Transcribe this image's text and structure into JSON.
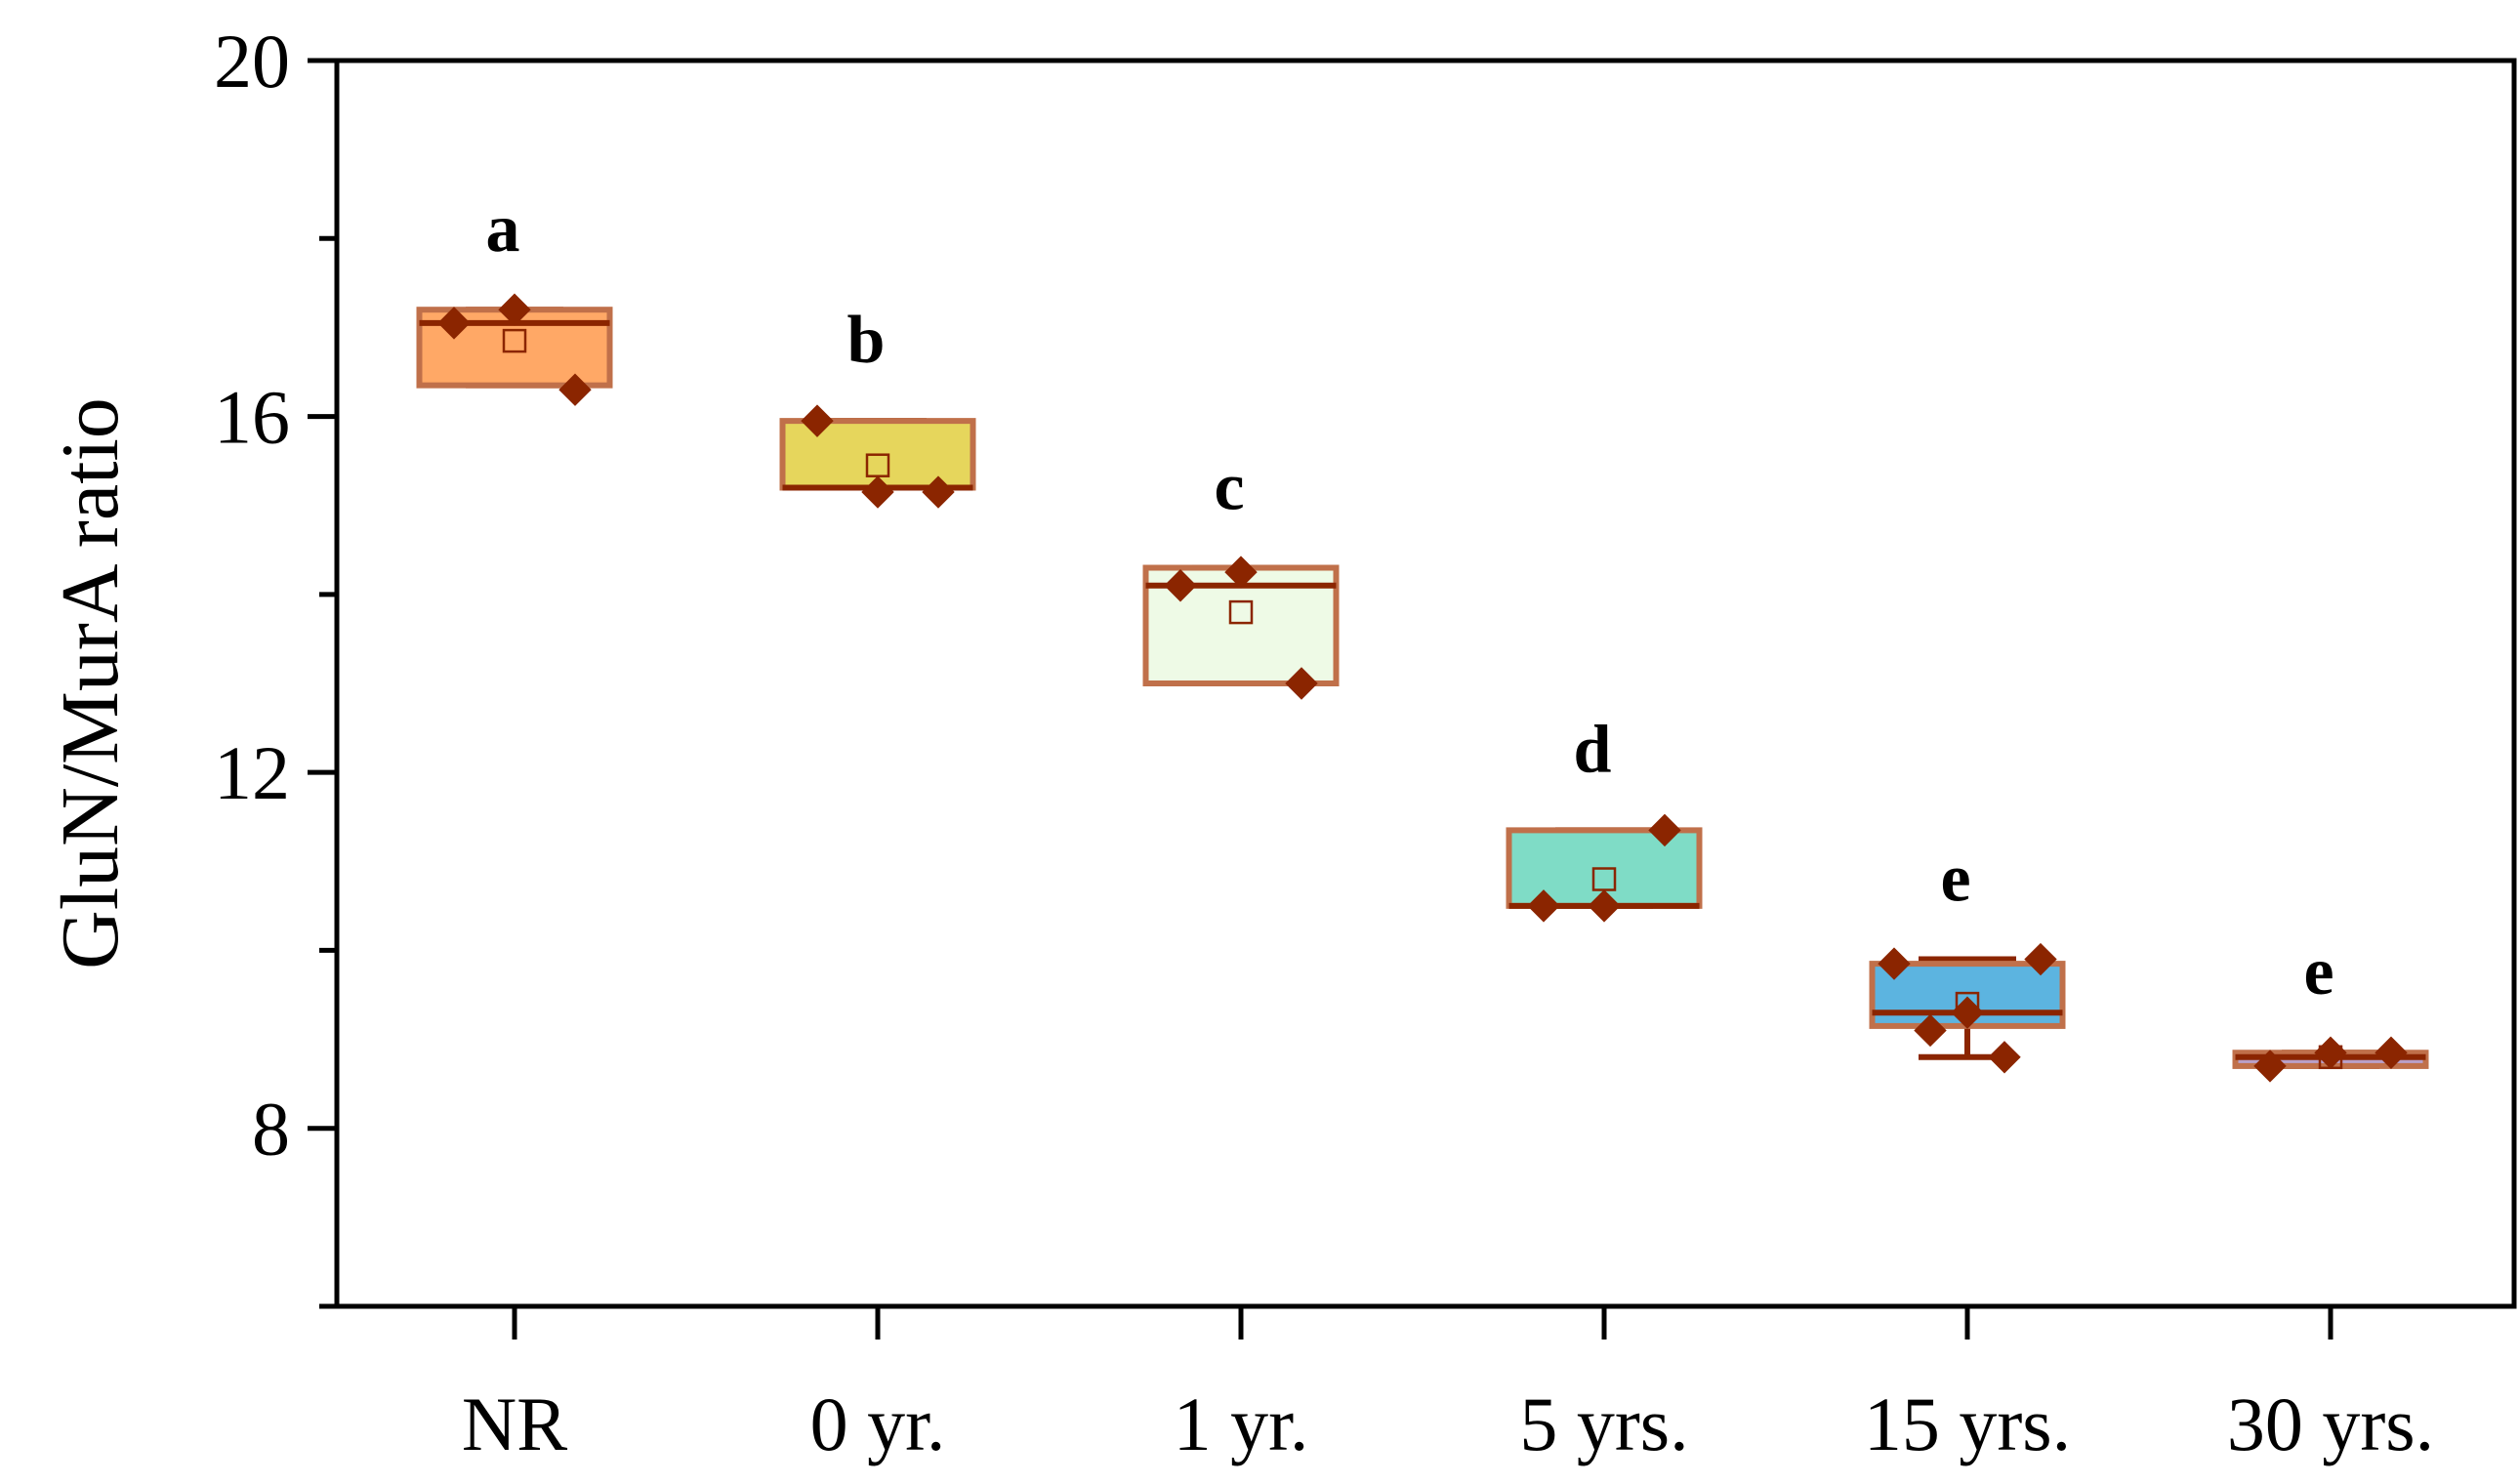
{
  "chart_data": {
    "type": "box",
    "title": "",
    "xlabel": "",
    "ylabel": "GluN/MurA ratio",
    "ylim": [
      6,
      20
    ],
    "yticks": [
      8,
      12,
      16,
      20
    ],
    "yminor": [
      6,
      10,
      14,
      18
    ],
    "categories": [
      "NR",
      "0 yr.",
      "1 yr.",
      "5 yrs.",
      "15 yrs.",
      "30 yrs."
    ],
    "groups": [
      {
        "name": "NR",
        "letter": "a",
        "fill": "#ffa866",
        "q1": 16.35,
        "median": 17.05,
        "q3": 17.2,
        "mean": 16.85,
        "whisker_low": 16.35,
        "whisker_high": 17.2,
        "points": [
          17.05,
          17.2,
          16.3
        ]
      },
      {
        "name": "0 yr.",
        "letter": "b",
        "fill": "#e6d65c",
        "q1": 15.2,
        "median": 15.2,
        "q3": 15.95,
        "mean": 15.45,
        "whisker_low": 15.2,
        "whisker_high": 15.95,
        "points": [
          15.95,
          15.15,
          15.15
        ]
      },
      {
        "name": "1 yr.",
        "letter": "c",
        "fill": "#eefae6",
        "q1": 13.0,
        "median": 14.1,
        "q3": 14.3,
        "mean": 13.8,
        "whisker_low": 13.0,
        "whisker_high": 14.3,
        "points": [
          14.1,
          14.25,
          13.0
        ]
      },
      {
        "name": "5 yrs.",
        "letter": "d",
        "fill": "#7fdcc6",
        "q1": 10.5,
        "median": 10.5,
        "q3": 11.35,
        "mean": 10.8,
        "whisker_low": 10.5,
        "whisker_high": 11.35,
        "points": [
          10.5,
          10.5,
          11.35
        ]
      },
      {
        "name": "15 yrs.",
        "letter": "e",
        "fill": "#5cb4e0",
        "q1": 9.15,
        "median": 9.3,
        "q3": 9.85,
        "mean": 9.4,
        "whisker_low": 8.8,
        "whisker_high": 9.9,
        "points": [
          9.85,
          9.1,
          9.3,
          8.8,
          9.9
        ]
      },
      {
        "name": "30 yrs.",
        "letter": "e",
        "fill": "#b9a0c8",
        "q1": 8.7,
        "median": 8.8,
        "q3": 8.85,
        "mean": 8.8,
        "whisker_low": 8.7,
        "whisker_high": 8.85,
        "points": [
          8.7,
          8.85,
          8.85
        ]
      }
    ],
    "colors": {
      "line": "#8b2500",
      "point": "#8b2500",
      "box_border": "#c0704a",
      "axis": "#000000"
    }
  }
}
